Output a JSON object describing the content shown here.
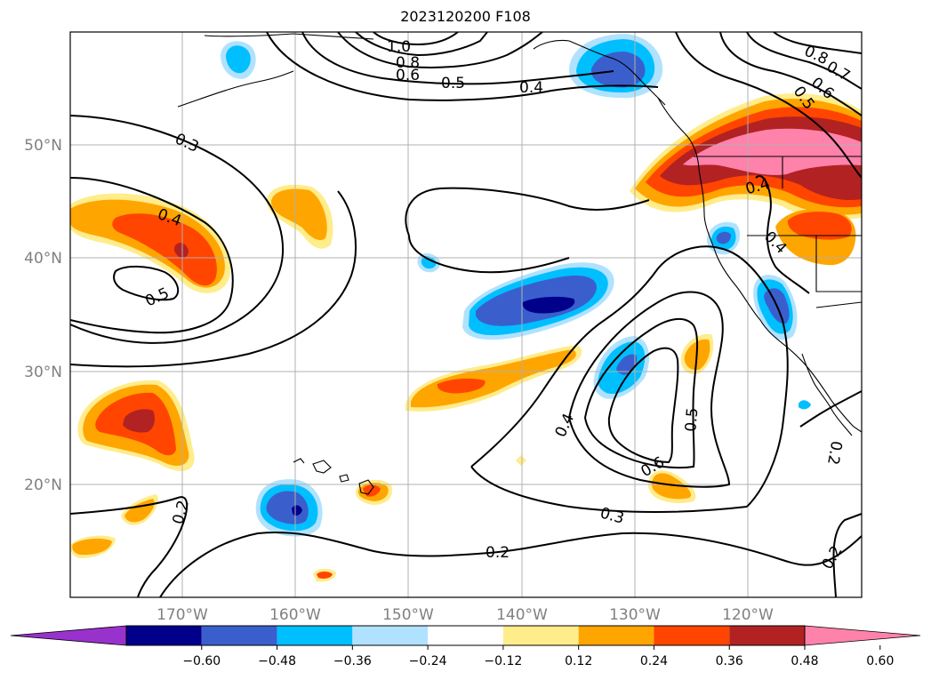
{
  "title": "2023120200 F108",
  "lon_labels": [
    "170°W",
    "160°W",
    "150°W",
    "140°W",
    "130°W",
    "120°W"
  ],
  "lat_labels": [
    "50°N",
    "40°N",
    "30°N",
    "20°N"
  ],
  "contour_labels": [
    "1.0",
    "0.8",
    "0.6",
    "0.5",
    "0.4",
    "0.3",
    "0.4",
    "0.5",
    "0.2",
    "0.4",
    "0.5",
    "0.6",
    "0.3",
    "0.2",
    "0.8",
    "0.7",
    "0.6",
    "0.5",
    "0.4",
    "0.4",
    "0.2",
    "0.2"
  ],
  "colorbar": {
    "levels": [
      "−0.60",
      "−0.48",
      "−0.36",
      "−0.24",
      "−0.12",
      "0.12",
      "0.24",
      "0.36",
      "0.48",
      "0.60"
    ],
    "colors": [
      "#9932cc",
      "#00008b",
      "#3a5fcd",
      "#00bfff",
      "#b0e2ff",
      "#ffffff",
      "#ffec8b",
      "#ffa500",
      "#ff4500",
      "#b22222",
      "#ff82ab"
    ]
  }
}
